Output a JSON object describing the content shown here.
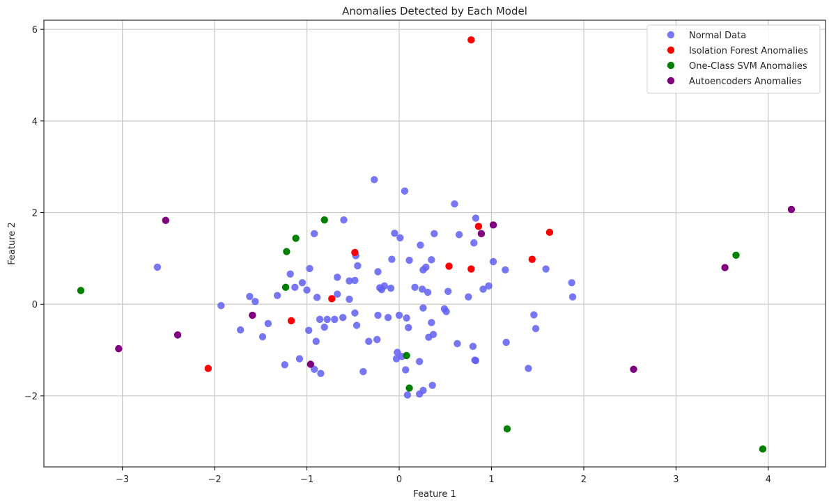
{
  "chart_data": {
    "type": "scatter",
    "title": "Anomalies Detected by Each Model",
    "xlabel": "Feature 1",
    "ylabel": "Feature 2",
    "xlim": [
      -3.85,
      4.62
    ],
    "ylim": [
      -3.55,
      6.2
    ],
    "xticks": [
      -3,
      -2,
      -1,
      0,
      1,
      2,
      3,
      4
    ],
    "yticks": [
      -2,
      0,
      2,
      4,
      6
    ],
    "grid": true,
    "legend_position": "top-right",
    "series": [
      {
        "name": "Normal Data",
        "color": "#5f5ff5",
        "opacity": 0.85,
        "points": [
          [
            -2.62,
            0.81
          ],
          [
            -1.93,
            -0.03
          ],
          [
            -1.62,
            0.17
          ],
          [
            -1.56,
            0.06
          ],
          [
            -1.72,
            -0.56
          ],
          [
            -1.48,
            -0.71
          ],
          [
            -1.42,
            -0.42
          ],
          [
            -1.32,
            0.19
          ],
          [
            -1.24,
            -1.32
          ],
          [
            -1.18,
            0.66
          ],
          [
            -1.13,
            0.37
          ],
          [
            -1.08,
            -1.19
          ],
          [
            -1.05,
            0.47
          ],
          [
            -1.0,
            0.31
          ],
          [
            -0.98,
            -0.57
          ],
          [
            -0.97,
            0.78
          ],
          [
            -0.92,
            1.54
          ],
          [
            -0.92,
            -1.42
          ],
          [
            -0.9,
            -0.81
          ],
          [
            -0.89,
            0.15
          ],
          [
            -0.86,
            -0.33
          ],
          [
            -0.85,
            -1.51
          ],
          [
            -0.81,
            -0.5
          ],
          [
            -0.78,
            -0.33
          ],
          [
            -0.7,
            -0.33
          ],
          [
            -0.67,
            0.59
          ],
          [
            -0.67,
            0.22
          ],
          [
            -0.61,
            -0.29
          ],
          [
            -0.6,
            1.84
          ],
          [
            -0.54,
            0.11
          ],
          [
            -0.54,
            0.51
          ],
          [
            -0.48,
            0.52
          ],
          [
            -0.48,
            -0.19
          ],
          [
            -0.47,
            1.06
          ],
          [
            -0.46,
            -0.46
          ],
          [
            -0.45,
            0.84
          ],
          [
            -0.39,
            -1.47
          ],
          [
            -0.33,
            -0.81
          ],
          [
            -0.27,
            2.72
          ],
          [
            -0.24,
            -0.77
          ],
          [
            -0.23,
            0.71
          ],
          [
            -0.23,
            -0.24
          ],
          [
            -0.21,
            0.36
          ],
          [
            -0.19,
            0.32
          ],
          [
            -0.16,
            0.4
          ],
          [
            -0.12,
            -0.29
          ],
          [
            -0.09,
            0.35
          ],
          [
            -0.08,
            0.98
          ],
          [
            -0.05,
            1.55
          ],
          [
            -0.03,
            -1.19
          ],
          [
            -0.02,
            -1.05
          ],
          [
            0.01,
            1.45
          ],
          [
            0.0,
            -0.24
          ],
          [
            0.03,
            -1.14
          ],
          [
            0.06,
            2.47
          ],
          [
            0.07,
            -1.43
          ],
          [
            0.09,
            -1.98
          ],
          [
            0.08,
            -0.3
          ],
          [
            0.1,
            -0.51
          ],
          [
            0.11,
            0.96
          ],
          [
            0.17,
            0.37
          ],
          [
            0.22,
            -1.25
          ],
          [
            0.23,
            1.29
          ],
          [
            0.22,
            -1.96
          ],
          [
            0.25,
            0.33
          ],
          [
            0.26,
            0.75
          ],
          [
            0.26,
            -0.08
          ],
          [
            0.26,
            -1.88
          ],
          [
            0.29,
            0.81
          ],
          [
            0.31,
            0.26
          ],
          [
            0.32,
            -0.72
          ],
          [
            0.35,
            -0.4
          ],
          [
            0.35,
            0.97
          ],
          [
            0.36,
            -1.77
          ],
          [
            0.37,
            -0.66
          ],
          [
            0.38,
            1.54
          ],
          [
            0.49,
            -0.1
          ],
          [
            0.51,
            -0.16
          ],
          [
            0.53,
            0.28
          ],
          [
            0.6,
            2.19
          ],
          [
            0.63,
            -0.86
          ],
          [
            0.65,
            1.52
          ],
          [
            0.75,
            0.16
          ],
          [
            0.8,
            -0.92
          ],
          [
            0.81,
            1.34
          ],
          [
            0.82,
            -1.22
          ],
          [
            0.83,
            -1.23
          ],
          [
            0.83,
            1.88
          ],
          [
            0.91,
            0.33
          ],
          [
            0.97,
            0.4
          ],
          [
            1.02,
            0.93
          ],
          [
            1.15,
            0.75
          ],
          [
            1.16,
            -0.83
          ],
          [
            1.4,
            -1.4
          ],
          [
            1.46,
            -0.23
          ],
          [
            1.48,
            -0.53
          ],
          [
            1.59,
            0.77
          ],
          [
            1.87,
            0.47
          ],
          [
            1.88,
            0.16
          ]
        ]
      },
      {
        "name": "Isolation Forest Anomalies",
        "color": "#ff0000",
        "opacity": 1,
        "points": [
          [
            0.78,
            5.77
          ],
          [
            -2.07,
            -1.4
          ],
          [
            -1.17,
            -0.36
          ],
          [
            -0.73,
            0.12
          ],
          [
            -0.48,
            1.13
          ],
          [
            0.54,
            0.83
          ],
          [
            0.78,
            0.77
          ],
          [
            0.86,
            1.7
          ],
          [
            1.44,
            0.98
          ],
          [
            1.63,
            1.57
          ]
        ]
      },
      {
        "name": "One-Class SVM Anomalies",
        "color": "#008000",
        "opacity": 1,
        "points": [
          [
            -3.45,
            0.3
          ],
          [
            -1.22,
            1.15
          ],
          [
            -1.23,
            0.37
          ],
          [
            -1.12,
            1.44
          ],
          [
            -0.81,
            1.84
          ],
          [
            0.08,
            -1.12
          ],
          [
            0.11,
            -1.83
          ],
          [
            1.17,
            -2.72
          ],
          [
            3.65,
            1.07
          ],
          [
            3.94,
            -3.16
          ]
        ]
      },
      {
        "name": "Autoencoders Anomalies",
        "color": "#800080",
        "opacity": 1,
        "points": [
          [
            -3.04,
            -0.97
          ],
          [
            -2.53,
            1.83
          ],
          [
            -2.4,
            -0.67
          ],
          [
            -1.59,
            -0.24
          ],
          [
            -0.96,
            -1.31
          ],
          [
            0.89,
            1.54
          ],
          [
            1.02,
            1.73
          ],
          [
            2.54,
            -1.42
          ],
          [
            3.53,
            0.8
          ],
          [
            4.25,
            2.07
          ]
        ]
      }
    ]
  }
}
